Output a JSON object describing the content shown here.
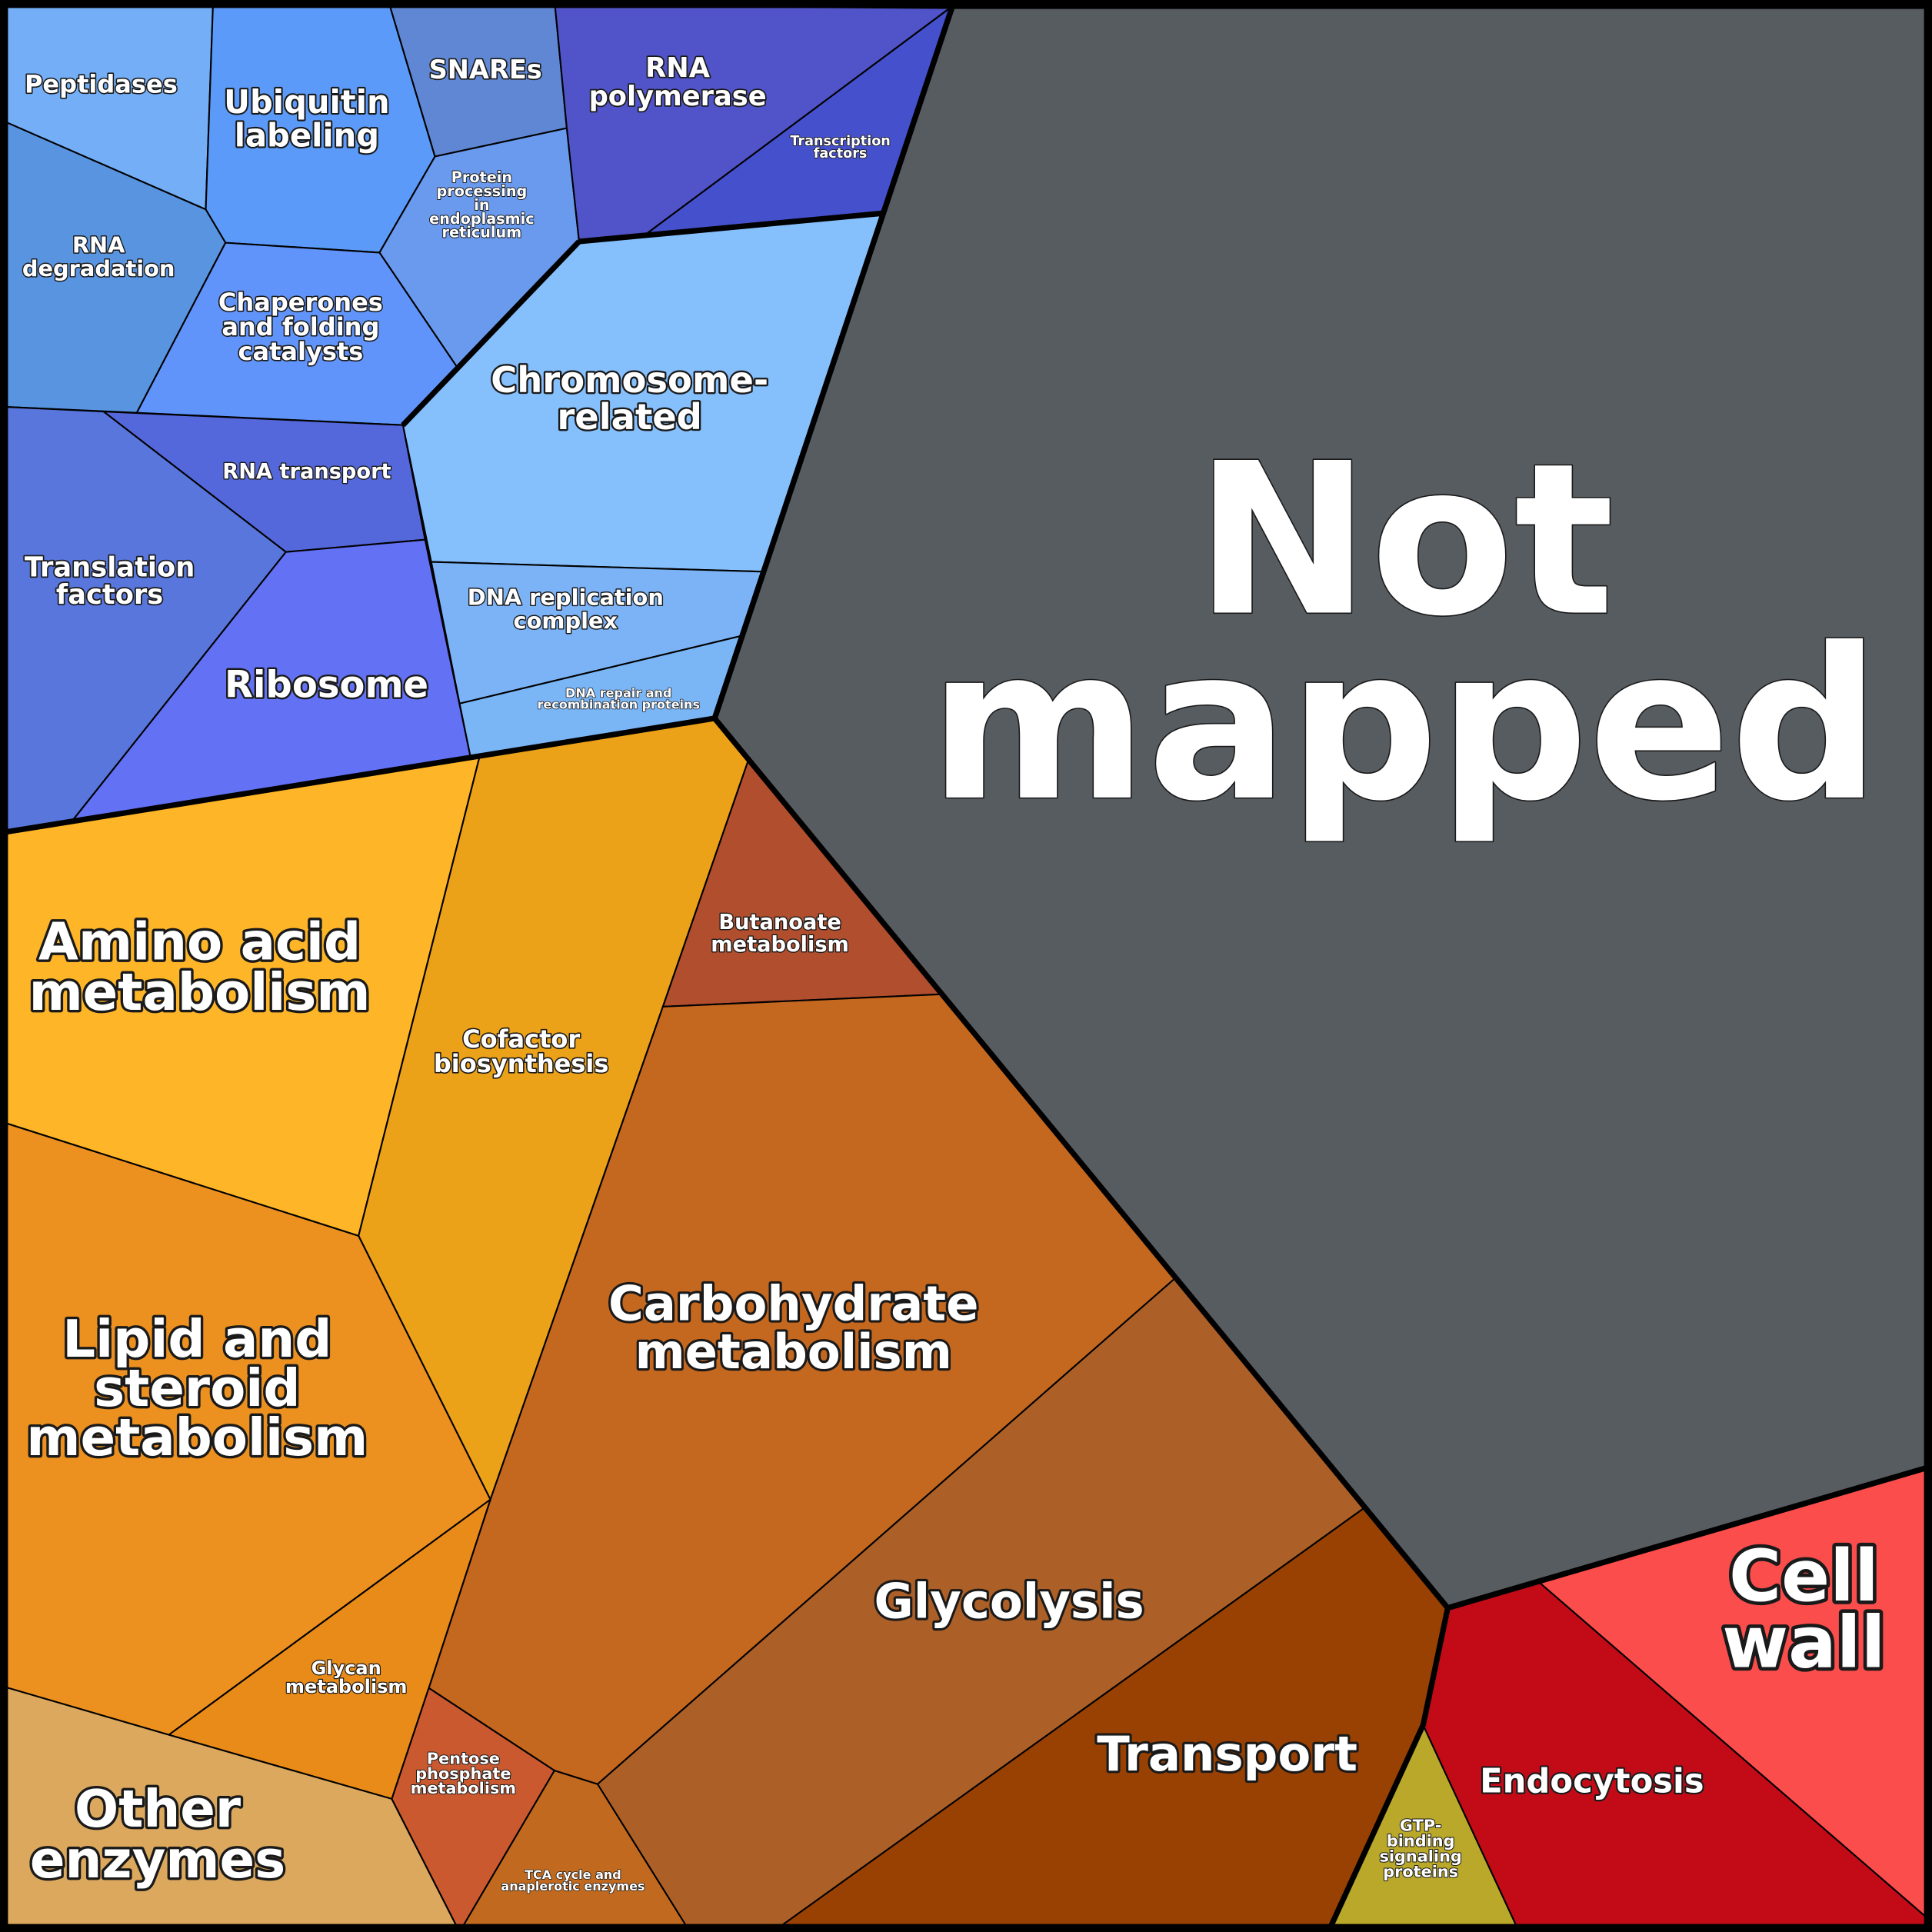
{
  "cells": {
    "peptidases": {
      "lines": [
        "Peptidases"
      ],
      "color": "#74aef6"
    },
    "ubiquitin": {
      "lines": [
        "Ubiquitin",
        "labeling"
      ],
      "color": "#5b9af8"
    },
    "snares": {
      "lines": [
        "SNAREs"
      ],
      "color": "#5f87d4"
    },
    "protein_er": {
      "lines": [
        "Protein",
        "processing",
        "in",
        "endoplasmic",
        "reticulum"
      ],
      "color": "#6a9aed"
    },
    "rna_polymerase": {
      "lines": [
        "RNA",
        "polymerase"
      ],
      "color": "#5054c8"
    },
    "transcription_factors": {
      "lines": [
        "Transcription",
        "factors"
      ],
      "color": "#4550cc"
    },
    "rna_degradation": {
      "lines": [
        "RNA",
        "degradation"
      ],
      "color": "#5994e0"
    },
    "chaperones": {
      "lines": [
        "Chaperones",
        "and folding",
        "catalysts"
      ],
      "color": "#6194fa"
    },
    "chromosome": {
      "lines": [
        "Chromosome-",
        "related"
      ],
      "color": "#85bffc"
    },
    "rna_transport": {
      "lines": [
        "RNA transport"
      ],
      "color": "#5468dc"
    },
    "translation_factors": {
      "lines": [
        "Translation",
        "factors"
      ],
      "color": "#5876dc"
    },
    "ribosome": {
      "lines": [
        "Ribosome"
      ],
      "color": "#6371f4"
    },
    "dna_replication": {
      "lines": [
        "DNA replication",
        "complex"
      ],
      "color": "#7bb3f6"
    },
    "dna_repair": {
      "lines": [
        "DNA repair and",
        "recombination proteins"
      ],
      "color": "#7ab5f5"
    },
    "not_mapped": {
      "lines": [
        "Not",
        "mapped"
      ],
      "color": "#575c61"
    },
    "amino_acid": {
      "lines": [
        "Amino acid",
        "metabolism"
      ],
      "color": "#feb528"
    },
    "cofactor": {
      "lines": [
        "Cofactor",
        "biosynthesis"
      ],
      "color": "#eba218"
    },
    "butanoate": {
      "lines": [
        "Butanoate",
        "metabolism"
      ],
      "color": "#b04e2e"
    },
    "carbohydrate": {
      "lines": [
        "Carbohydrate",
        "metabolism"
      ],
      "color": "#c4671f"
    },
    "glycolysis": {
      "lines": [
        "Glycolysis"
      ],
      "color": "#ac6027"
    },
    "transport": {
      "lines": [
        "Transport"
      ],
      "color": "#984103"
    },
    "lipid": {
      "lines": [
        "Lipid and",
        "steroid",
        "metabolism"
      ],
      "color": "#ec9120"
    },
    "glycan": {
      "lines": [
        "Glycan",
        "metabolism"
      ],
      "color": "#e98b18"
    },
    "other_enzymes": {
      "lines": [
        "Other",
        "enzymes"
      ],
      "color": "#dba85e"
    },
    "pentose": {
      "lines": [
        "Pentose",
        "phosphate",
        "metabolism"
      ],
      "color": "#cb5930"
    },
    "tca": {
      "lines": [
        "TCA cycle and",
        "anaplerotic enzymes"
      ],
      "color": "#c16a1f"
    },
    "gtp": {
      "lines": [
        "GTP-",
        "binding",
        "signaling",
        "proteins"
      ],
      "color": "#b9a82a"
    },
    "endocytosis": {
      "lines": [
        "Endocytosis"
      ],
      "color": "#c30b18"
    },
    "cell_wall": {
      "lines": [
        "Cell",
        "wall"
      ],
      "color": "#fa4d4c"
    }
  }
}
